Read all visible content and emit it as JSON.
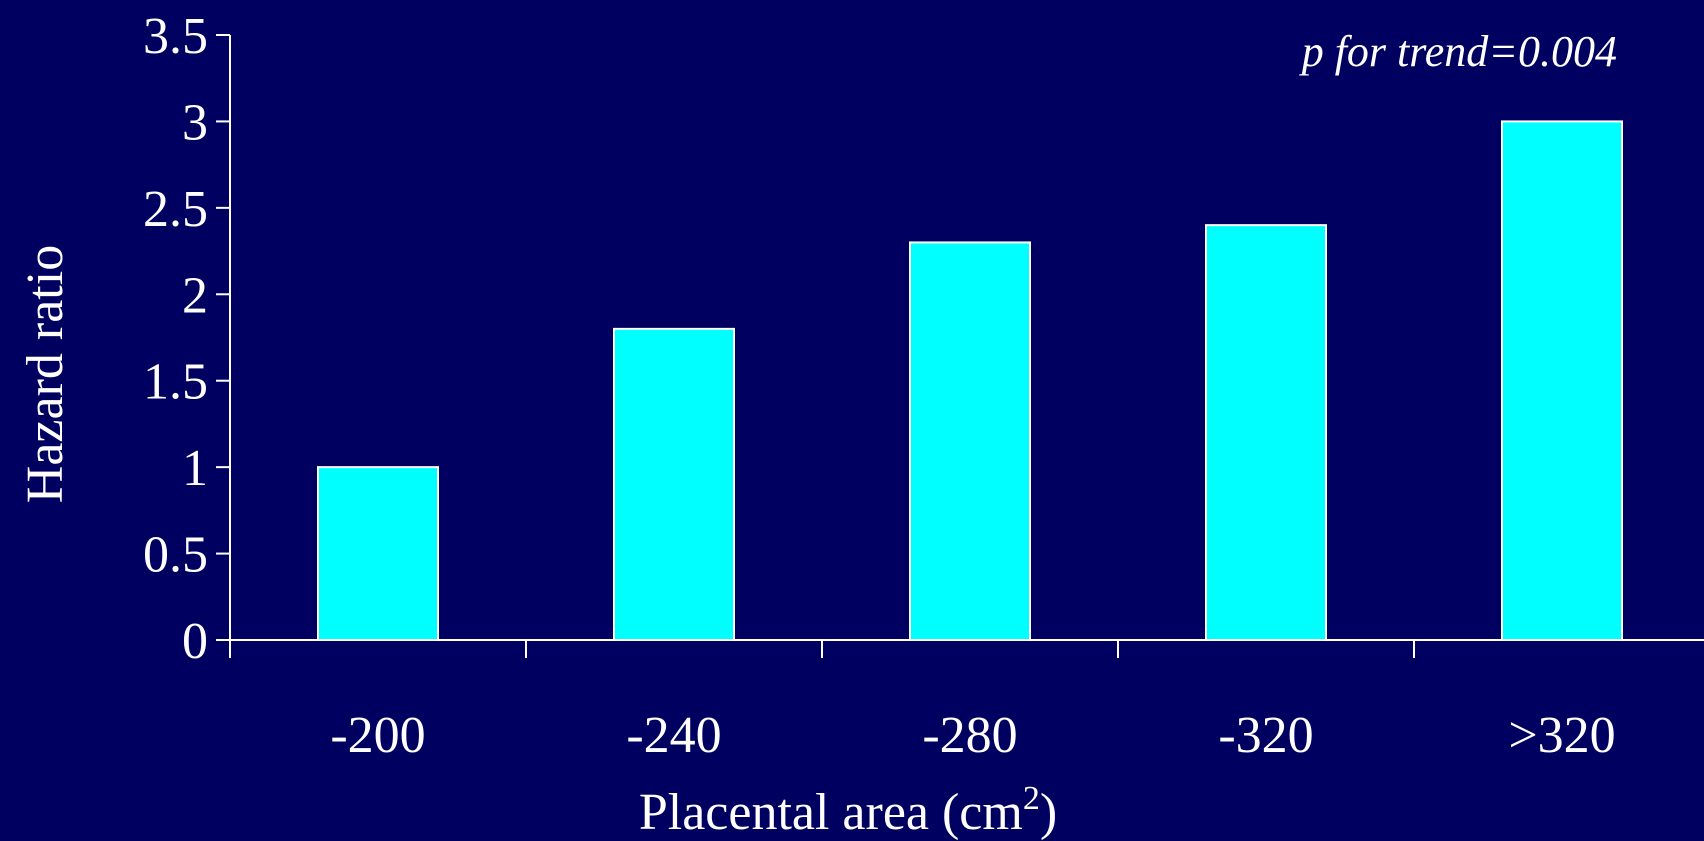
{
  "chart_data": {
    "type": "bar",
    "categories": [
      "-200",
      "-240",
      "-280",
      "-320",
      ">320"
    ],
    "values": [
      1.0,
      1.8,
      2.3,
      2.4,
      3.0
    ],
    "title": "",
    "xlabel": "Placental area (cm",
    "xlabel_superscript": "2",
    "xlabel_suffix": ")",
    "ylabel": "Hazard ratio",
    "ylim": [
      0,
      3.5
    ],
    "yticks": [
      "0",
      "0.5",
      "1",
      "1.5",
      "2",
      "2.5",
      "3",
      "3.5"
    ],
    "annotation": "p for trend=0.004",
    "grid": false,
    "legend": "none",
    "colors": {
      "background": "#000060",
      "bar_fill": "#00ffff",
      "bar_stroke": "#ffffff",
      "axis": "#ffffff",
      "text": "#ffffff"
    }
  }
}
